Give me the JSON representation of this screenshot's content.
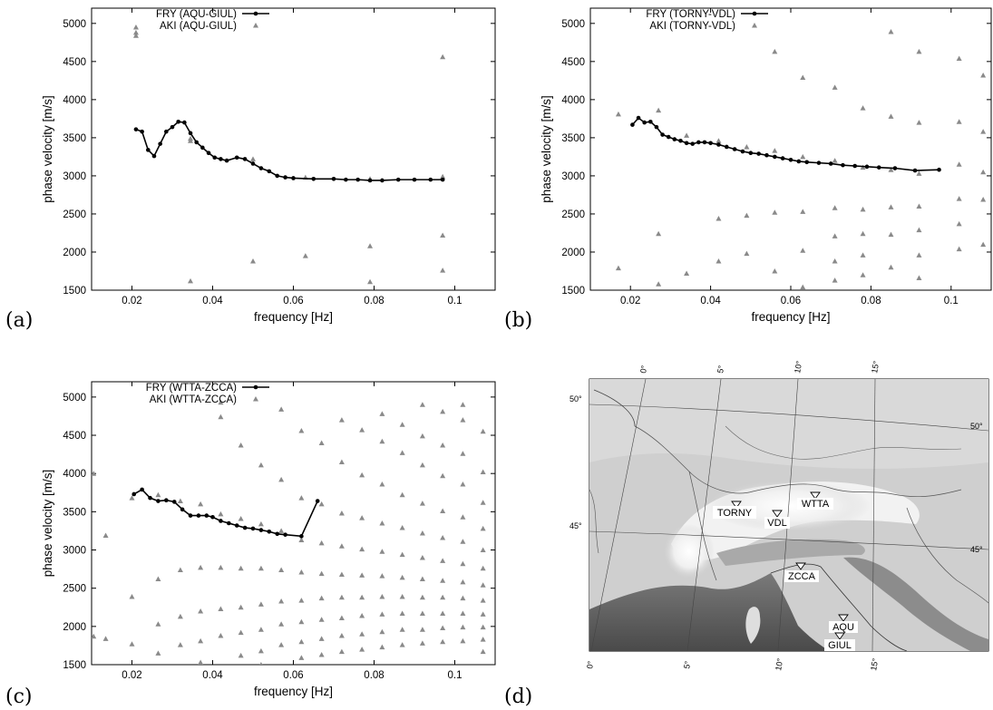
{
  "panel_labels": [
    "(a)",
    "(b)",
    "(c)",
    "(d)"
  ],
  "chart_data": [
    {
      "type": "scatter",
      "panel": "(a)",
      "xlabel": "frequency [Hz]",
      "ylabel": "phase velocity [m/s]",
      "xlim": [
        0.01,
        0.11
      ],
      "ylim": [
        1500,
        5200
      ],
      "xticks": [
        0.02,
        0.04,
        0.06,
        0.08,
        0.1
      ],
      "xtick_labels": [
        "0.02",
        "0.04",
        "0.06",
        "0.08",
        "0.1"
      ],
      "yticks": [
        1500,
        2000,
        2500,
        3000,
        3500,
        4000,
        4500,
        5000
      ],
      "ytick_labels": [
        "1500",
        "2000",
        "2500",
        "3000",
        "3500",
        "4000",
        "4500",
        "5000"
      ],
      "legend_position": "top-left",
      "series": [
        {
          "name": "FRY (AQU-GIUL)",
          "style": "line-points",
          "color": "#000000",
          "x": [
            0.021,
            0.0225,
            0.024,
            0.0255,
            0.027,
            0.0285,
            0.03,
            0.0315,
            0.033,
            0.0345,
            0.036,
            0.0375,
            0.039,
            0.0405,
            0.042,
            0.0435,
            0.046,
            0.048,
            0.05,
            0.052,
            0.054,
            0.056,
            0.058,
            0.06,
            0.065,
            0.07,
            0.073,
            0.076,
            0.079,
            0.082,
            0.086,
            0.09,
            0.094,
            0.097
          ],
          "y": [
            3610,
            3580,
            3340,
            3260,
            3420,
            3580,
            3640,
            3710,
            3700,
            3560,
            3440,
            3370,
            3300,
            3240,
            3220,
            3200,
            3240,
            3220,
            3160,
            3100,
            3060,
            3000,
            2980,
            2970,
            2960,
            2960,
            2950,
            2950,
            2940,
            2940,
            2950,
            2950,
            2950,
            2950
          ]
        },
        {
          "name": "AKI (AQU-GIUL)",
          "style": "triangles",
          "color": "#8a8a8a",
          "x": [
            0.021,
            0.021,
            0.021,
            0.0345,
            0.0345,
            0.0345,
            0.05,
            0.05,
            0.063,
            0.063,
            0.079,
            0.079,
            0.079,
            0.097,
            0.097,
            0.097,
            0.097
          ],
          "y": [
            4880,
            4840,
            4950,
            3460,
            3490,
            1620,
            3220,
            1880,
            2980,
            1950,
            2960,
            2080,
            1610,
            4560,
            2990,
            2220,
            1760
          ]
        }
      ]
    },
    {
      "type": "scatter",
      "panel": "(b)",
      "xlabel": "frequency [Hz]",
      "ylabel": "phase velocity [m/s]",
      "xlim": [
        0.01,
        0.11
      ],
      "ylim": [
        1500,
        5200
      ],
      "xticks": [
        0.02,
        0.04,
        0.06,
        0.08,
        0.1
      ],
      "xtick_labels": [
        "0.02",
        "0.04",
        "0.06",
        "0.08",
        "0.1"
      ],
      "yticks": [
        1500,
        2000,
        2500,
        3000,
        3500,
        4000,
        4500,
        5000
      ],
      "ytick_labels": [
        "1500",
        "2000",
        "2500",
        "3000",
        "3500",
        "4000",
        "4500",
        "5000"
      ],
      "legend_position": "top-left",
      "series": [
        {
          "name": "FRY (TORNY-VDL)",
          "style": "line-points",
          "color": "#000000",
          "x": [
            0.0205,
            0.022,
            0.0235,
            0.025,
            0.0265,
            0.028,
            0.0295,
            0.031,
            0.0325,
            0.034,
            0.0355,
            0.037,
            0.0385,
            0.04,
            0.042,
            0.044,
            0.046,
            0.048,
            0.05,
            0.052,
            0.054,
            0.056,
            0.058,
            0.06,
            0.062,
            0.064,
            0.067,
            0.07,
            0.073,
            0.076,
            0.079,
            0.082,
            0.086,
            0.091,
            0.097
          ],
          "y": [
            3670,
            3760,
            3700,
            3710,
            3640,
            3540,
            3510,
            3480,
            3460,
            3430,
            3420,
            3440,
            3440,
            3430,
            3410,
            3380,
            3350,
            3320,
            3300,
            3290,
            3270,
            3250,
            3230,
            3210,
            3190,
            3180,
            3170,
            3160,
            3140,
            3130,
            3120,
            3110,
            3100,
            3070,
            3080
          ]
        },
        {
          "name": "AKI (TORNY-VDL)",
          "style": "triangles",
          "color": "#8a8a8a",
          "x": [
            0.017,
            0.017,
            0.027,
            0.027,
            0.027,
            0.034,
            0.034,
            0.042,
            0.042,
            0.042,
            0.049,
            0.049,
            0.049,
            0.056,
            0.056,
            0.056,
            0.056,
            0.063,
            0.063,
            0.063,
            0.063,
            0.063,
            0.071,
            0.071,
            0.071,
            0.071,
            0.071,
            0.071,
            0.078,
            0.078,
            0.078,
            0.078,
            0.078,
            0.078,
            0.085,
            0.085,
            0.085,
            0.085,
            0.085,
            0.085,
            0.092,
            0.092,
            0.092,
            0.092,
            0.092,
            0.092,
            0.092,
            0.102,
            0.102,
            0.102,
            0.102,
            0.102,
            0.102,
            0.108,
            0.108,
            0.108,
            0.108,
            0.108
          ],
          "y": [
            3810,
            1790,
            3860,
            2240,
            1580,
            3530,
            1720,
            3460,
            2440,
            1880,
            3380,
            2480,
            1980,
            4630,
            3330,
            2520,
            1750,
            4290,
            3250,
            2530,
            2020,
            1540,
            4160,
            3200,
            2580,
            2210,
            1880,
            1630,
            3890,
            3110,
            2560,
            2240,
            1960,
            1700,
            4890,
            3780,
            3080,
            2590,
            2230,
            1800,
            4630,
            3700,
            3030,
            2600,
            2290,
            1960,
            1660,
            4540,
            3710,
            3150,
            2700,
            2370,
            2040,
            4320,
            3580,
            3050,
            2690,
            2100
          ]
        }
      ]
    },
    {
      "type": "scatter",
      "panel": "(c)",
      "xlabel": "frequency [Hz]",
      "ylabel": "phase velocity [m/s]",
      "xlim": [
        0.01,
        0.11
      ],
      "ylim": [
        1500,
        5200
      ],
      "xticks": [
        0.02,
        0.04,
        0.06,
        0.08,
        0.1
      ],
      "xtick_labels": [
        "0.02",
        "0.04",
        "0.06",
        "0.08",
        "0.1"
      ],
      "yticks": [
        1500,
        2000,
        2500,
        3000,
        3500,
        4000,
        4500,
        5000
      ],
      "ytick_labels": [
        "1500",
        "2000",
        "2500",
        "3000",
        "3500",
        "4000",
        "4500",
        "5000"
      ],
      "legend_position": "top-left",
      "series": [
        {
          "name": "FRY (WTTA-ZCCA)",
          "style": "line-points",
          "color": "#000000",
          "x": [
            0.0205,
            0.0225,
            0.0245,
            0.0265,
            0.0285,
            0.0305,
            0.0325,
            0.0345,
            0.0365,
            0.0385,
            0.04,
            0.042,
            0.044,
            0.046,
            0.048,
            0.05,
            0.052,
            0.054,
            0.056,
            0.058,
            0.062,
            0.066
          ],
          "y": [
            3730,
            3790,
            3680,
            3640,
            3650,
            3630,
            3530,
            3450,
            3450,
            3450,
            3430,
            3380,
            3350,
            3320,
            3290,
            3280,
            3260,
            3240,
            3210,
            3200,
            3180,
            3640
          ]
        },
        {
          "name": "AKI (WTTA-ZCCA)",
          "style": "triangles",
          "color": "#8a8a8a",
          "grid_x_start": 0.01,
          "grid_x_end": 0.109,
          "grid_x_step": 0.0052,
          "note_points": "dense family of modes",
          "x": [
            0.0105,
            0.0105,
            0.0135,
            0.0135,
            0.02,
            0.02,
            0.02,
            0.0265,
            0.0265,
            0.0265,
            0.0265,
            0.032,
            0.032,
            0.032,
            0.032,
            0.037,
            0.037,
            0.037,
            0.037,
            0.037,
            0.042,
            0.042,
            0.042,
            0.042,
            0.042,
            0.042,
            0.047,
            0.047,
            0.047,
            0.047,
            0.047,
            0.047,
            0.052,
            0.052,
            0.052,
            0.052,
            0.052,
            0.052,
            0.052,
            0.057,
            0.057,
            0.057,
            0.057,
            0.057,
            0.057,
            0.057,
            0.062,
            0.062,
            0.062,
            0.062,
            0.062,
            0.062,
            0.062,
            0.062,
            0.067,
            0.067,
            0.067,
            0.067,
            0.067,
            0.067,
            0.067,
            0.067,
            0.072,
            0.072,
            0.072,
            0.072,
            0.072,
            0.072,
            0.072,
            0.072,
            0.072,
            0.077,
            0.077,
            0.077,
            0.077,
            0.077,
            0.077,
            0.077,
            0.077,
            0.077,
            0.082,
            0.082,
            0.082,
            0.082,
            0.082,
            0.082,
            0.082,
            0.082,
            0.082,
            0.082,
            0.087,
            0.087,
            0.087,
            0.087,
            0.087,
            0.087,
            0.087,
            0.087,
            0.087,
            0.087,
            0.092,
            0.092,
            0.092,
            0.092,
            0.092,
            0.092,
            0.092,
            0.092,
            0.092,
            0.092,
            0.092,
            0.097,
            0.097,
            0.097,
            0.097,
            0.097,
            0.097,
            0.097,
            0.097,
            0.097,
            0.097,
            0.097,
            0.102,
            0.102,
            0.102,
            0.102,
            0.102,
            0.102,
            0.102,
            0.102,
            0.102,
            0.102,
            0.102,
            0.102,
            0.107,
            0.107,
            0.107,
            0.107,
            0.107,
            0.107,
            0.107,
            0.107,
            0.107,
            0.107,
            0.107,
            0.107
          ],
          "y": [
            4000,
            1870,
            3190,
            1840,
            3680,
            2390,
            1770,
            3720,
            2620,
            2030,
            1650,
            3640,
            2740,
            2130,
            1760,
            3600,
            2770,
            2200,
            1810,
            1530,
            4930,
            4740,
            3470,
            2770,
            2230,
            1880,
            4370,
            3410,
            2760,
            2250,
            1920,
            1620,
            4110,
            3340,
            2760,
            2290,
            1960,
            1680,
            1500,
            4840,
            3920,
            3250,
            2740,
            2330,
            2030,
            1760,
            4560,
            3680,
            3130,
            2710,
            2340,
            2060,
            1800,
            1590,
            4400,
            3600,
            3090,
            2690,
            2370,
            2090,
            1840,
            1630,
            4700,
            4150,
            3480,
            3050,
            2680,
            2380,
            2110,
            1880,
            1670,
            4570,
            3980,
            3420,
            3010,
            2670,
            2380,
            2140,
            1900,
            1700,
            4780,
            4420,
            3860,
            3350,
            2980,
            2660,
            2390,
            2160,
            1930,
            1730,
            4640,
            4270,
            3720,
            3290,
            2940,
            2640,
            2390,
            2170,
            1960,
            1760,
            4900,
            4490,
            4110,
            3610,
            3220,
            2900,
            2620,
            2380,
            2170,
            1960,
            1780,
            4810,
            4370,
            3970,
            3510,
            3160,
            2860,
            2600,
            2380,
            2170,
            1980,
            1800,
            4900,
            4700,
            4260,
            3860,
            3430,
            3110,
            2820,
            2580,
            2370,
            2170,
            1990,
            1810,
            4550,
            4020,
            3620,
            3280,
            3000,
            2760,
            2540,
            2340,
            2160,
            1990,
            1830,
            1670
          ]
        }
      ]
    }
  ],
  "map": {
    "lon_labels_top": [
      "0°",
      "5°",
      "10°",
      "15°"
    ],
    "lon_labels_bottom": [
      "0°",
      "5°",
      "10°",
      "15°"
    ],
    "lat_labels_left": [
      "50°",
      "45°"
    ],
    "lat_labels_right": [
      "50°",
      "45°"
    ],
    "stations": [
      {
        "code": "TORNY",
        "lon": 7.6,
        "lat": 46.7
      },
      {
        "code": "VDL",
        "lon": 9.6,
        "lat": 46.4
      },
      {
        "code": "WTTA",
        "lon": 11.6,
        "lat": 47.1
      },
      {
        "code": "ZCCA",
        "lon": 10.9,
        "lat": 44.3
      },
      {
        "code": "AQU",
        "lon": 13.4,
        "lat": 42.4
      },
      {
        "code": "GIUL",
        "lon": 13.4,
        "lat": 41.6
      }
    ]
  }
}
